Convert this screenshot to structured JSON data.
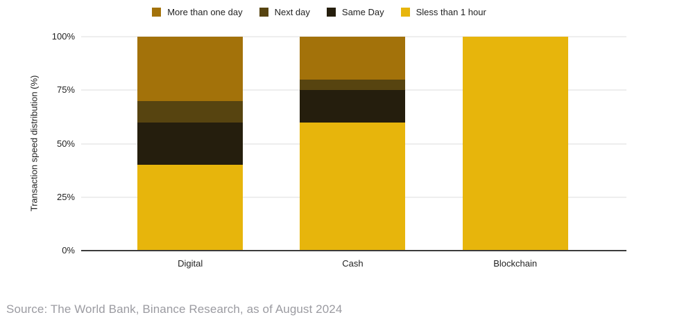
{
  "chart_data": {
    "type": "bar",
    "stacked": true,
    "categories": [
      "Digital",
      "Cash",
      "Blockchain"
    ],
    "series": [
      {
        "name": "More than one day",
        "color": "#A3720A",
        "values": [
          30,
          20,
          0
        ]
      },
      {
        "name": "Next day",
        "color": "#574410",
        "values": [
          10,
          5,
          0
        ]
      },
      {
        "name": "Same Day",
        "color": "#251E0D",
        "values": [
          20,
          15,
          0
        ]
      },
      {
        "name": "Sless than 1 hour",
        "color": "#E7B50C",
        "values": [
          40,
          60,
          100
        ]
      }
    ],
    "title": "",
    "xlabel": "",
    "ylabel": "Transaction speed distribution (%)",
    "ylim": [
      0,
      100
    ],
    "yticks": [
      "0%",
      "25%",
      "50%",
      "75%",
      "100%"
    ],
    "grid": true,
    "legend_position": "top",
    "colors": {
      "gridline": "#DCDCDC",
      "axis_line": "#3B3B3B",
      "text": "#1F1F1F",
      "source_text": "#9B9BA1"
    }
  },
  "source": "Source: The World Bank, Binance Research, as of August 2024"
}
